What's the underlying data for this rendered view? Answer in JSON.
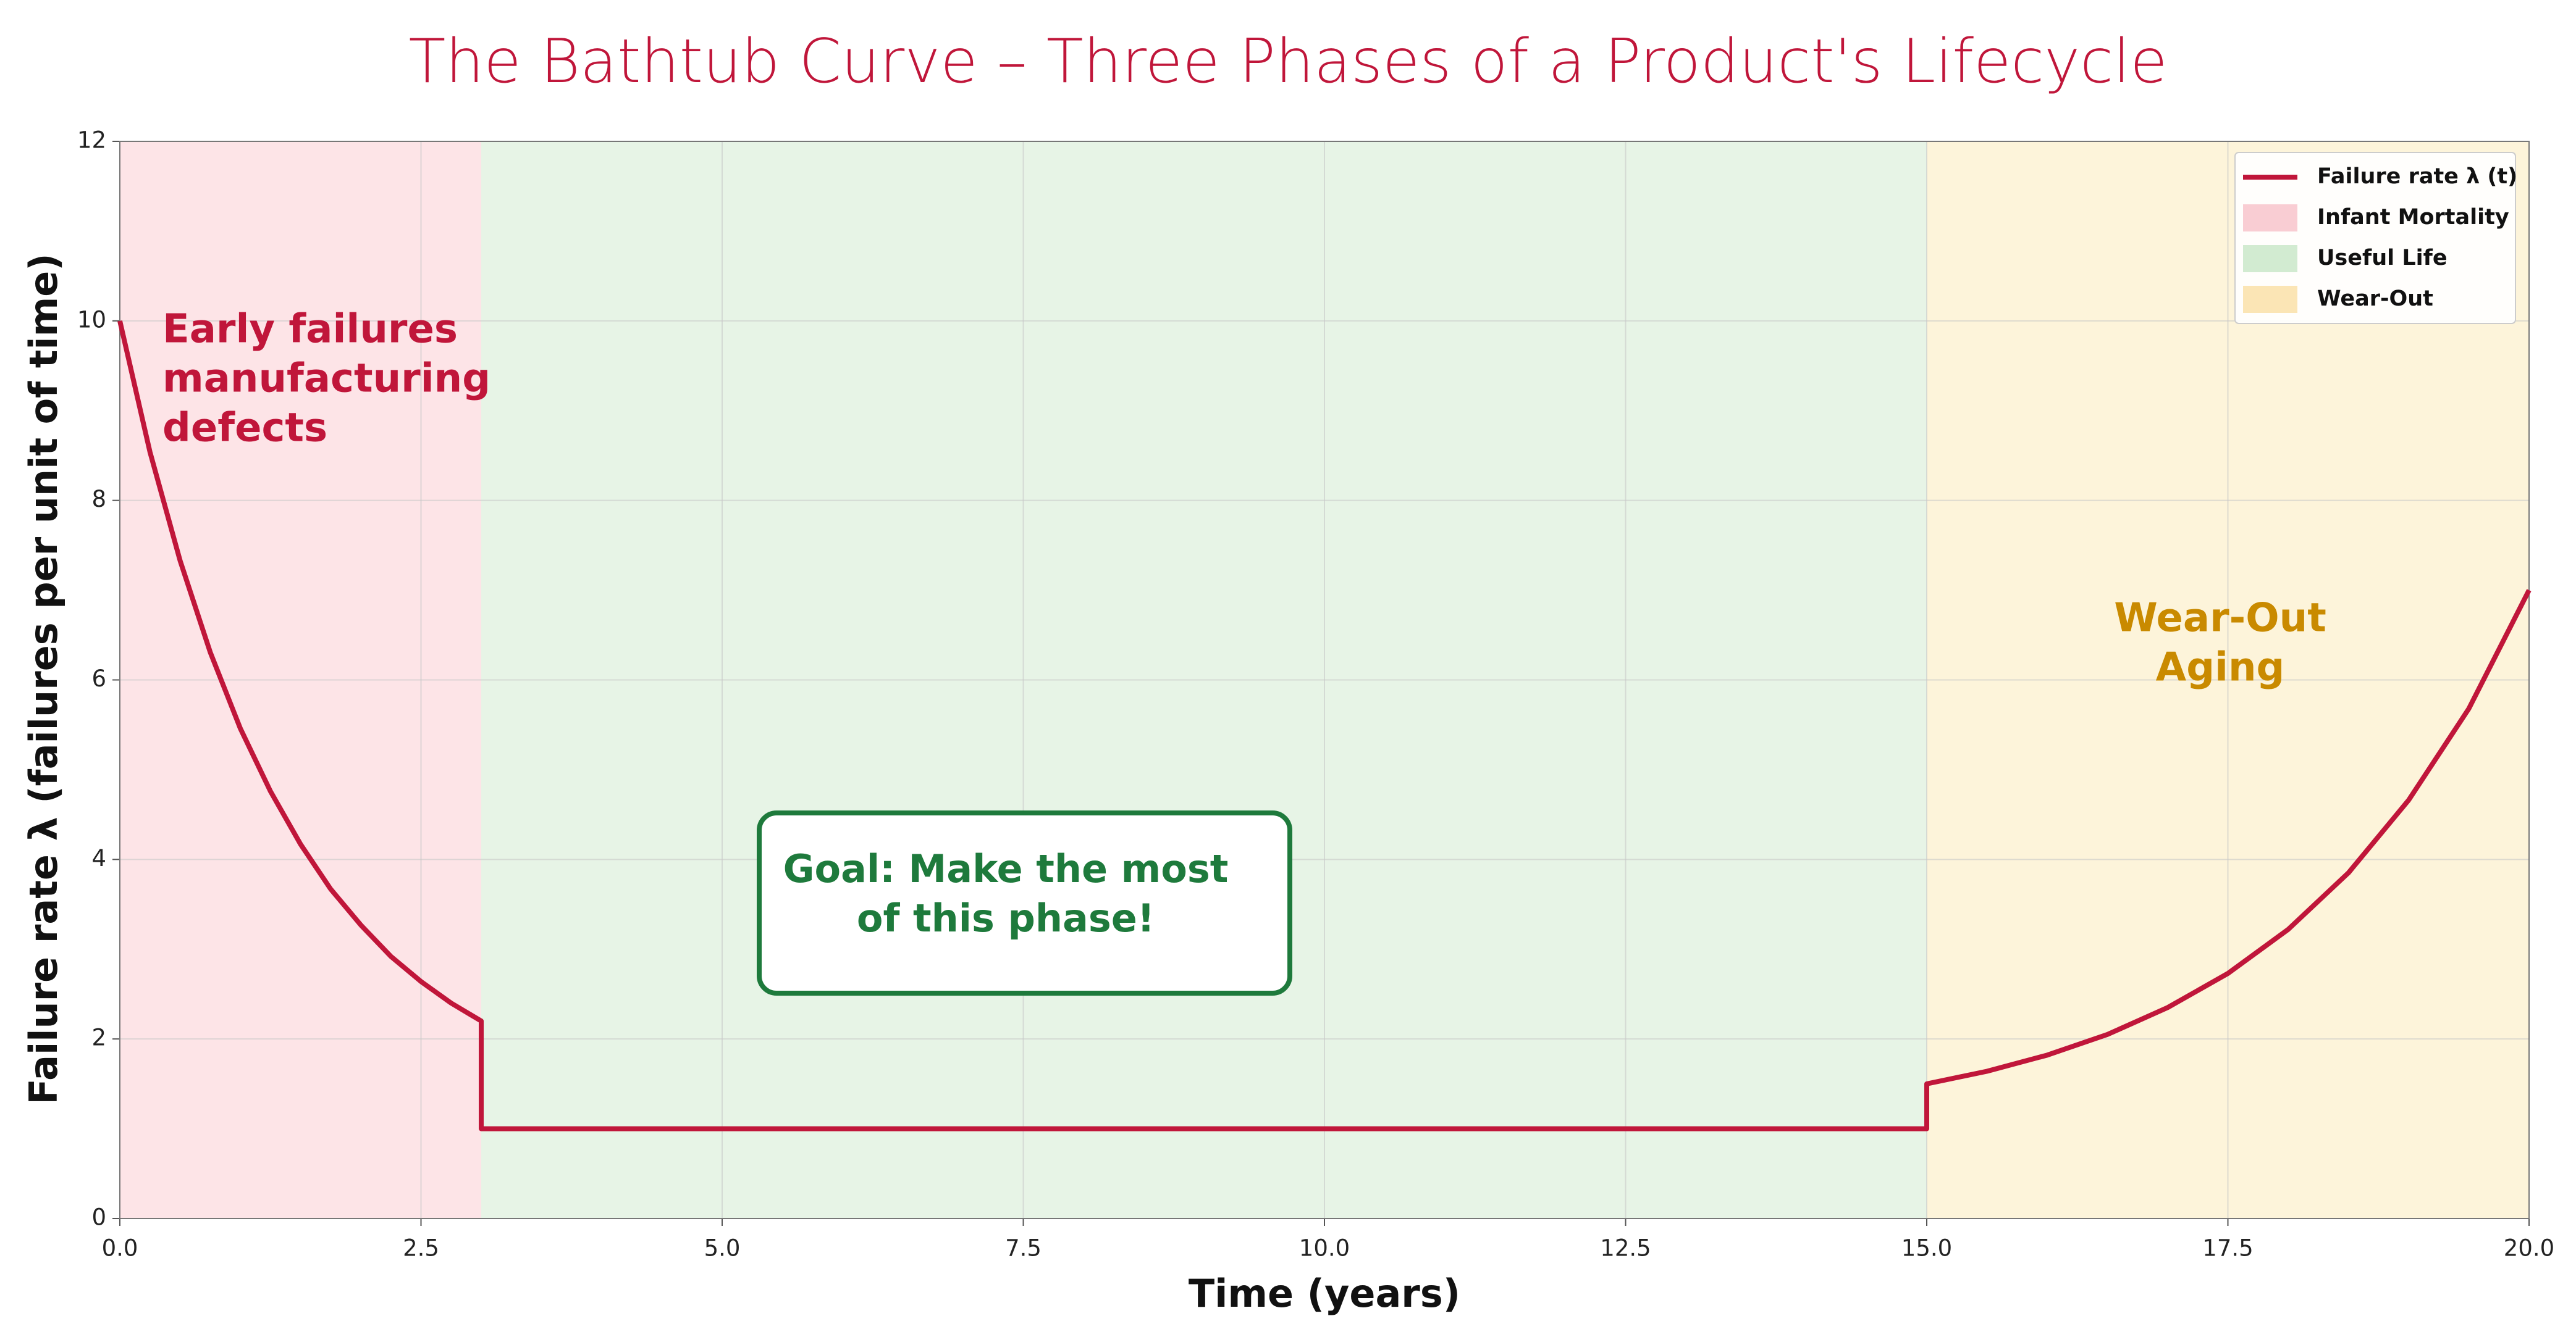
{
  "chart_data": {
    "type": "line",
    "title": "The Bathtub Curve – Three Phases of a Product's Lifecycle",
    "x_label": "Time (years)",
    "y_label": "Failure rate λ (failures per unit of time)",
    "x": [
      0,
      0.25,
      0.5,
      0.75,
      1,
      1.25,
      1.5,
      1.75,
      2,
      2.25,
      2.5,
      2.75,
      3,
      3,
      15,
      15,
      15.5,
      16,
      16.5,
      17,
      17.5,
      18,
      18.5,
      19,
      19.5,
      20
    ],
    "series": [
      {
        "name": "Failure rate λ (t)",
        "color": "#c0163a",
        "values": [
          10,
          8.54,
          7.33,
          6.31,
          5.46,
          4.76,
          4.17,
          3.67,
          3.27,
          2.92,
          2.64,
          2.4,
          2.2,
          1,
          1,
          1.5,
          1.64,
          1.82,
          2.05,
          2.35,
          2.73,
          3.22,
          3.85,
          4.66,
          5.68,
          7
        ]
      }
    ],
    "regions": [
      {
        "name": "Infant Mortality",
        "color": "#fde4e7",
        "swatch": "#f9cdd3",
        "start": 0,
        "end": 3
      },
      {
        "name": "Useful Life",
        "color": "#e7f4e6",
        "swatch": "#d2ebd1",
        "start": 3,
        "end": 15
      },
      {
        "name": "Wear-Out",
        "color": "#fdf4da",
        "swatch": "#fbe5b5",
        "start": 15,
        "end": 20
      }
    ],
    "annotations": [
      {
        "lines": [
          "Early failures",
          "manufacturing",
          "defects"
        ],
        "color": "#c0163a"
      },
      {
        "lines": [
          "Goal: Make the most",
          "of this phase!"
        ],
        "color": "#1e7a3c"
      },
      {
        "lines": [
          "Wear-Out",
          "Aging"
        ],
        "color": "#c98a00"
      }
    ],
    "xlim": [
      0,
      20
    ],
    "xticks": [
      {
        "value": 0,
        "label": "0.0"
      },
      2.5,
      {
        "value": 5,
        "label": "5.0"
      },
      7.5,
      {
        "value": 10,
        "label": "10.0"
      },
      12.5,
      {
        "value": 15,
        "label": "15.0"
      },
      17.5,
      {
        "value": 20,
        "label": "20.0"
      }
    ],
    "ylim": [
      0,
      12
    ],
    "yticks": [
      0,
      2,
      4,
      6,
      8,
      10,
      12
    ],
    "grid": true,
    "legend": "upper right"
  }
}
